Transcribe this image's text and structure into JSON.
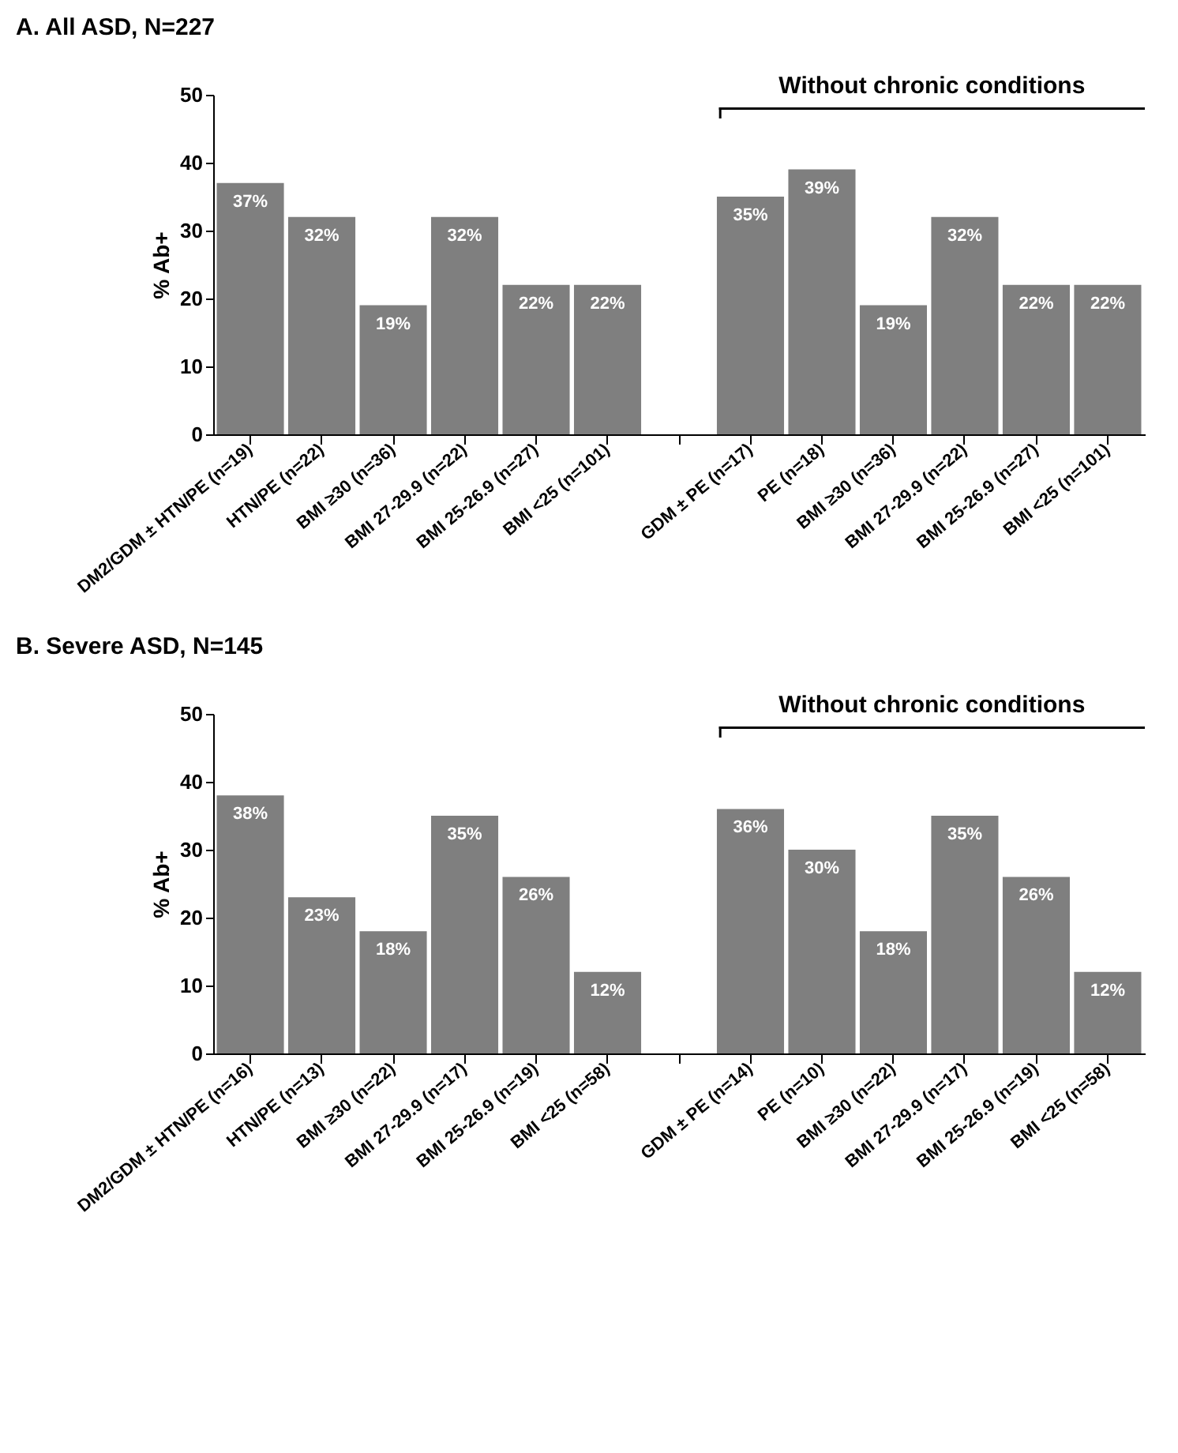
{
  "chart_data": [
    {
      "type": "bar",
      "title": "A. All ASD, N=227",
      "ylabel": "% Ab+",
      "categories": [
        "DM2/GDM ± HTN/PE (n=19)",
        "HTN/PE (n=22)",
        "BMI ≥30 (n=36)",
        "BMI 27-29.9 (n=22)",
        "BMI 25-26.9 (n=27)",
        "BMI <25 (n=101)",
        null,
        "GDM ± PE (n=17)",
        "PE (n=18)",
        "BMI ≥30 (n=36)",
        "BMI 27-29.9 (n=22)",
        "BMI 25-26.9 (n=27)",
        "BMI <25 (n=101)"
      ],
      "values": [
        37,
        32,
        19,
        32,
        22,
        22,
        null,
        35,
        39,
        19,
        32,
        22,
        22
      ],
      "value_labels": [
        "37%",
        "32%",
        "19%",
        "32%",
        "22%",
        "22%",
        null,
        "35%",
        "39%",
        "19%",
        "32%",
        "22%",
        "22%"
      ],
      "color": "#7f7f7f",
      "ylim": [
        0,
        50
      ],
      "yticks": [
        0,
        10,
        20,
        30,
        40,
        50
      ],
      "grid": false,
      "annotations": [
        "Without chronic conditions"
      ]
    },
    {
      "type": "bar",
      "title": "B. Severe ASD, N=145",
      "ylabel": "% Ab+",
      "categories": [
        "DM2/GDM ± HTN/PE (n=16)",
        "HTN/PE (n=13)",
        "BMI ≥30 (n=22)",
        "BMI 27-29.9 (n=17)",
        "BMI 25-26.9 (n=19)",
        "BMI <25 (n=58)",
        null,
        "GDM ± PE (n=14)",
        "PE (n=10)",
        "BMI ≥30 (n=22)",
        "BMI 27-29.9 (n=17)",
        "BMI 25-26.9 (n=19)",
        "BMI <25 (n=58)"
      ],
      "values": [
        38,
        23,
        18,
        35,
        26,
        12,
        null,
        36,
        30,
        18,
        35,
        26,
        12
      ],
      "value_labels": [
        "38%",
        "23%",
        "18%",
        "35%",
        "26%",
        "12%",
        null,
        "36%",
        "30%",
        "18%",
        "35%",
        "26%",
        "12%"
      ],
      "color": "#7f7f7f",
      "ylim": [
        0,
        50
      ],
      "yticks": [
        0,
        10,
        20,
        30,
        40,
        50
      ],
      "grid": false,
      "annotations": [
        "Without chronic conditions"
      ]
    }
  ]
}
